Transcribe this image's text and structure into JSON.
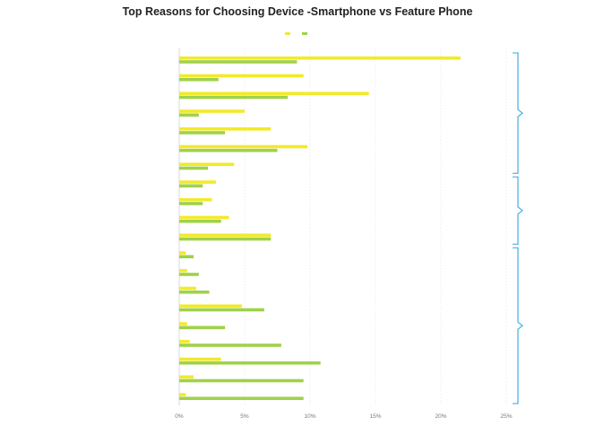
{
  "chart_data": {
    "type": "bar",
    "orientation": "horizontal",
    "title": "Top Reasons for Choosing Device -Smartphone vs Feature Phone",
    "subtitle": "",
    "categories": [
      "",
      "",
      "",
      "",
      "",
      "",
      "",
      "",
      "",
      "",
      "",
      "",
      "",
      "",
      "",
      "",
      "",
      "",
      "",
      ""
    ],
    "series": [
      {
        "name": "",
        "color": "#f2ea2a",
        "values": [
          21.5,
          9.5,
          14.5,
          5.0,
          7.0,
          9.8,
          4.2,
          2.8,
          2.5,
          3.8,
          7.0,
          0.5,
          0.6,
          1.3,
          4.8,
          0.6,
          0.8,
          3.2,
          1.1,
          0.5
        ]
      },
      {
        "name": "",
        "color": "#9fd24a",
        "values": [
          9.0,
          3.0,
          8.3,
          1.5,
          3.5,
          7.5,
          2.2,
          1.8,
          1.8,
          3.2,
          7.0,
          1.1,
          1.5,
          2.3,
          6.5,
          3.5,
          7.8,
          10.8,
          9.5,
          9.5
        ]
      }
    ],
    "xlim": [
      0,
      25
    ],
    "xticks": [
      "0%",
      "5%",
      "10%",
      "15%",
      "20%",
      "25%"
    ],
    "grid": true,
    "legend_position": "top",
    "groups": [
      {
        "label": "",
        "from": 0,
        "to": 6
      },
      {
        "label": "",
        "from": 7,
        "to": 10
      },
      {
        "label": "",
        "from": 11,
        "to": 19
      }
    ]
  }
}
